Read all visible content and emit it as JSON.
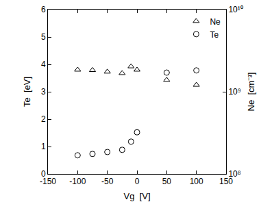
{
  "chart_data": {
    "type": "scatter",
    "x_label": "Vg  [V]",
    "y_label": "Te  [eV]",
    "y2_label": "Ne  [cm⁻³]",
    "x": [
      -100,
      -75,
      -50,
      -25,
      -10,
      0,
      50,
      100
    ],
    "series": [
      {
        "name": "Ne",
        "color": "#000000",
        "marker": "triangle-up-open",
        "axis": "y2",
        "values": [
          1850000000.0,
          1830000000.0,
          1750000000.0,
          1680000000.0,
          2030000000.0,
          1850000000.0,
          1390000000.0,
          1210000000.0
        ]
      },
      {
        "name": "Te",
        "color": "#000000",
        "marker": "circle-open",
        "axis": "y",
        "values": [
          0.68,
          0.73,
          0.8,
          0.88,
          1.18,
          1.52,
          3.7,
          3.78
        ]
      }
    ],
    "xlim": [
      -150,
      150
    ],
    "xticks": [
      -150,
      -100,
      -50,
      0,
      50,
      100,
      150
    ],
    "ylim": [
      0,
      6
    ],
    "yticks": [
      0,
      1,
      2,
      3,
      4,
      5,
      6
    ],
    "y2lim": [
      100000000,
      10000000000
    ],
    "y2ticks": [
      {
        "value": 100000000,
        "label": "10⁸"
      },
      {
        "value": 1000000000,
        "label": "10⁹"
      },
      {
        "value": 10000000000,
        "label": "10¹⁰"
      }
    ],
    "log": "y2",
    "grid": false,
    "legend": "upper right"
  }
}
